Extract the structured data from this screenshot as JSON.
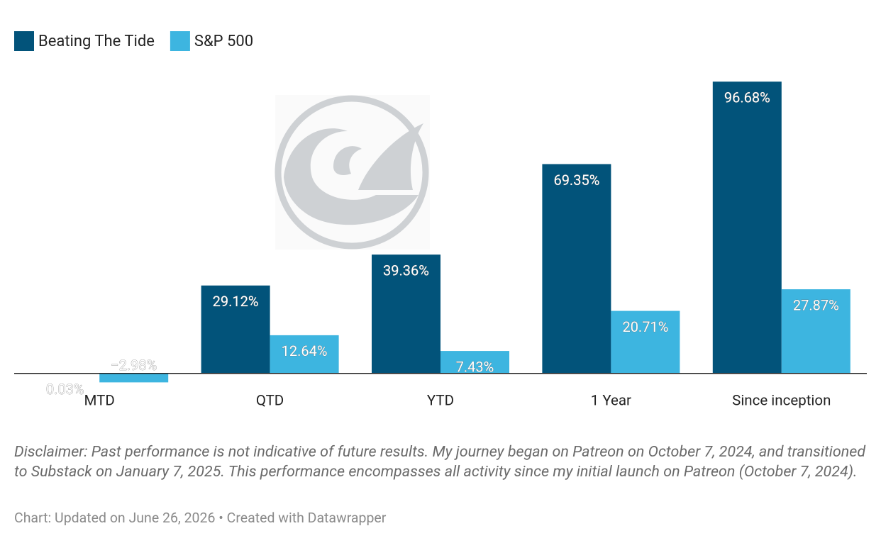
{
  "chart_data": {
    "type": "grouped-bar",
    "categories": [
      "MTD",
      "QTD",
      "YTD",
      "1 Year",
      "Since inception"
    ],
    "series": [
      {
        "name": "Beating The Tide",
        "color": "#02537a",
        "values": [
          0.03,
          29.12,
          39.36,
          69.35,
          96.68
        ],
        "value_labels": [
          "0.03%",
          "29.12%",
          "39.36%",
          "69.35%",
          "96.68%"
        ]
      },
      {
        "name": "S&P 500",
        "color": "#3db5e0",
        "values": [
          -2.98,
          12.64,
          7.43,
          20.71,
          27.87
        ],
        "value_labels": [
          "−2.98%",
          "12.64%",
          "7.43%",
          "20.71%",
          "27.87%"
        ]
      }
    ],
    "ylim": [
      -5,
      100
    ],
    "legend": "top-left",
    "notes": "Disclaimer: Past performance is not indicative of future results. My journey began on Patreon on October 7, 2024, and transitioned to Substack on January 7, 2025. This performance encompasses all activity since my initial launch on Patreon (October 7, 2024).",
    "source": "Chart: Updated on June 26, 2026 • Created with Datawrapper"
  }
}
